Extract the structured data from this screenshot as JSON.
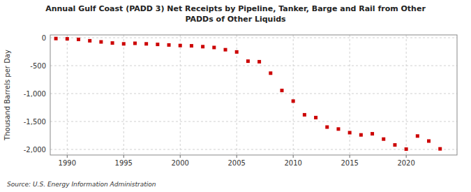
{
  "chart_data": {
    "type": "scatter",
    "title": "Annual Gulf Coast (PADD 3) Net Receipts by Pipeline, Tanker, Barge and Rail from Other\nPADDs of Other Liquids",
    "ylabel": "Thousand Barrels per Day",
    "source": "Source: U.S. Energy Information Administration",
    "x": [
      1989,
      1990,
      1991,
      1992,
      1993,
      1994,
      1995,
      1996,
      1997,
      1998,
      1999,
      2000,
      2001,
      2002,
      2003,
      2004,
      2005,
      2006,
      2007,
      2008,
      2009,
      2010,
      2011,
      2012,
      2013,
      2014,
      2015,
      2016,
      2017,
      2018,
      2019,
      2020,
      2021,
      2022,
      2023
    ],
    "values": [
      -15,
      -20,
      -30,
      -55,
      -75,
      -95,
      -110,
      -100,
      -110,
      -120,
      -130,
      -140,
      -145,
      -160,
      -175,
      -215,
      -255,
      -420,
      -430,
      -635,
      -945,
      -1135,
      -1380,
      -1430,
      -1600,
      -1635,
      -1700,
      -1740,
      -1720,
      -1815,
      -1920,
      -1995,
      -1760,
      -1850,
      -1990
    ],
    "color": "#cc0000",
    "marker": "square",
    "xlim": [
      1988.5,
      2024.5
    ],
    "xticks": [
      1990,
      1995,
      2000,
      2005,
      2010,
      2015,
      2020
    ],
    "ylim": [
      -2100,
      50
    ],
    "yticks": [
      0,
      -500,
      {
        "value": -1000,
        "label": "-1,000"
      },
      {
        "value": -1500,
        "label": "-1,500"
      },
      {
        "value": -2000,
        "label": "-2,000"
      }
    ],
    "grid": true
  }
}
